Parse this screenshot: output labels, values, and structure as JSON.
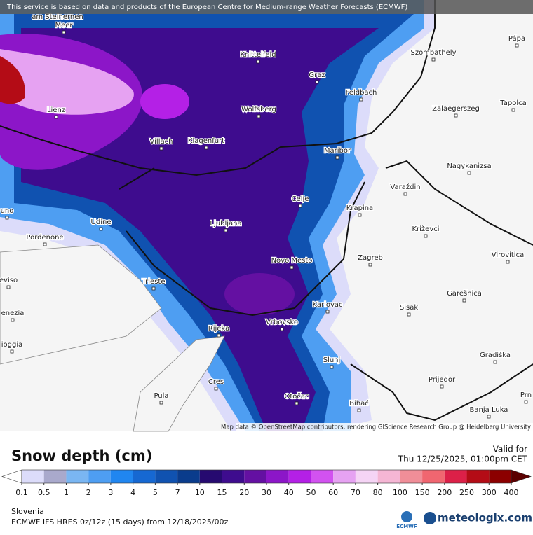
{
  "header": {
    "notice": "This service is based on data and products of the European Centre for Medium-range Weather Forecasts (ECMWF)"
  },
  "map": {
    "attribution": "Map data © OpenStreetMap contributors, rendering GIScience Research Group @ Heidelberg University",
    "places": [
      "am Steinernen",
      "Meer",
      "Knittelfeld",
      "Szombathely",
      "Pápa",
      "Graz",
      "Feldbach",
      "Lienz",
      "Wolfsberg",
      "Zalaegerszeg",
      "Tapolca",
      "Villach",
      "Klagenfurt",
      "Maribor",
      "Nagykanizsa",
      "Varaždin",
      "Celje",
      "Krapina",
      "uno",
      "Udine",
      "Ljubljana",
      "Križevci",
      "Pordenone",
      "Zagreb",
      "Virovitica",
      "Novo Mesto",
      "eviso",
      "Trieste",
      "Garešnica",
      "Karlovac",
      "Sisak",
      "enezia",
      "Rijeka",
      "Vrbovsko",
      "ioggia",
      "Slunj",
      "Gradiška",
      "Prijedor",
      "Cres",
      "Pula",
      "Otočac",
      "Bihać",
      "Banja Luka",
      "Prn"
    ]
  },
  "legend": {
    "title": "Snow depth (cm)",
    "ticks": [
      0.1,
      0.5,
      1,
      2,
      3,
      4,
      5,
      7,
      10,
      15,
      20,
      30,
      40,
      50,
      60,
      70,
      80,
      100,
      150,
      200,
      250,
      300,
      400
    ],
    "below_color": "#ffffff",
    "above_color": "#5a0000",
    "colors": [
      "#dcdcfa",
      "#a9a9cc",
      "#7ab6f2",
      "#4e9ef2",
      "#2086f0",
      "#1668d2",
      "#1052b0",
      "#0a3c8c",
      "#260a70",
      "#3e0c8e",
      "#6410a2",
      "#8c16c8",
      "#b420e6",
      "#d252f0",
      "#e6a2f2",
      "#f5d4f5",
      "#f5b6d4",
      "#f08e98",
      "#f06670",
      "#dc2048",
      "#b40c16",
      "#8c0000"
    ]
  },
  "footer": {
    "valid_label": "Valid for",
    "valid_time": "Thu 12/25/2025, 01:00pm CET",
    "region": "Slovenia",
    "model": "ECMWF IFS HRES 0z/12z (15 days) from 12/18/2025/00z",
    "ecmwf_logo": "ECMWF",
    "brand": "meteologix.com"
  }
}
